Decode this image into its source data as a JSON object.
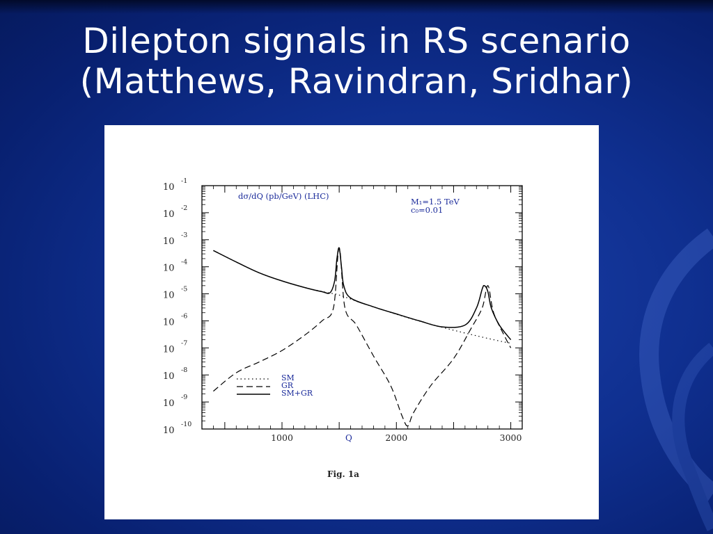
{
  "slide": {
    "title_line1": "Dilepton signals in RS scenario",
    "title_line2": "(Matthews, Ravindran, Sridhar)"
  },
  "figure": {
    "caption": "Fig. 1a"
  },
  "colors": {
    "background": "#0f2f8f",
    "title": "#ffffff",
    "plot_frame": "#000000",
    "plot_text": "#1a2a9a"
  },
  "chart_data": {
    "type": "line",
    "title": "dσ/dQ (pb/GeV)    (LHC)",
    "annotation_lines": [
      "M₁=1.5 TeV",
      "c₀=0.01"
    ],
    "xlabel": "Q",
    "ylabel": "",
    "x_ticks": [
      1000,
      2000,
      3000
    ],
    "x_tick_labels": [
      "1000",
      "2000",
      "3000"
    ],
    "xlim": [
      300,
      3100
    ],
    "y_scale": "log",
    "ylim": [
      1e-10,
      0.1
    ],
    "y_ticks": [
      -1,
      -2,
      -3,
      -4,
      -5,
      -6,
      -7,
      -8,
      -9,
      -10
    ],
    "y_tick_base": "10",
    "legend": {
      "position": "lower-left",
      "entries": [
        "SM",
        "GR",
        "SM+GR"
      ]
    },
    "series": [
      {
        "name": "SM",
        "style": "dotted",
        "x": [
          400,
          600,
          800,
          1000,
          1200,
          1400,
          1500,
          1700,
          1900,
          2100,
          2300,
          2500,
          2700,
          2900,
          3000
        ],
        "y": [
          0.0004,
          0.00015,
          6e-05,
          3e-05,
          1.7e-05,
          1.1e-05,
          9e-06,
          4.5e-06,
          2.4e-06,
          1.3e-06,
          7.5e-07,
          4.5e-07,
          2.8e-07,
          1.8e-07,
          1.5e-07
        ]
      },
      {
        "name": "GR",
        "style": "dashed",
        "x": [
          400,
          600,
          800,
          1000,
          1200,
          1350,
          1450,
          1500,
          1550,
          1650,
          1800,
          1950,
          2050,
          2100,
          2150,
          2300,
          2500,
          2650,
          2750,
          2800,
          2850,
          2950,
          3000
        ],
        "y": [
          2.5e-09,
          1.2e-08,
          3e-08,
          8e-08,
          3e-07,
          1e-06,
          3e-06,
          0.0005,
          3e-06,
          7e-07,
          5e-08,
          4e-09,
          3e-10,
          1.3e-10,
          4e-10,
          4e-09,
          4e-08,
          5e-07,
          3e-06,
          2e-05,
          2e-06,
          2.5e-07,
          1e-07
        ]
      },
      {
        "name": "SM+GR",
        "style": "solid",
        "x": [
          400,
          600,
          800,
          1000,
          1200,
          1350,
          1420,
          1460,
          1480,
          1500,
          1520,
          1540,
          1600,
          1800,
          2000,
          2200,
          2400,
          2600,
          2700,
          2750,
          2770,
          2800,
          2830,
          2900,
          3000
        ],
        "y": [
          0.0004,
          0.00015,
          6e-05,
          3e-05,
          1.7e-05,
          1.2e-05,
          1.1e-05,
          3e-05,
          0.0002,
          0.0005,
          0.0001,
          2e-05,
          7e-06,
          3.3e-06,
          1.8e-06,
          1e-06,
          6e-07,
          7e-07,
          3e-06,
          1.5e-05,
          2e-05,
          1.2e-05,
          3e-06,
          7e-07,
          2e-07
        ]
      }
    ]
  }
}
